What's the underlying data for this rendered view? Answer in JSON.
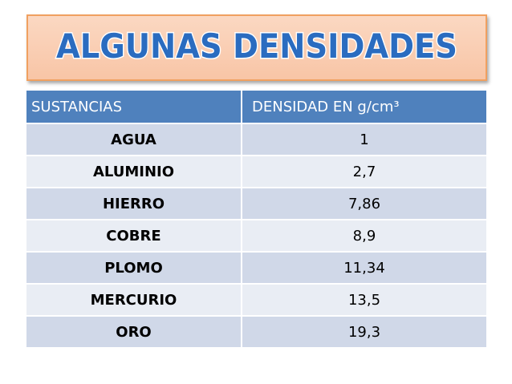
{
  "title": "ALGUNAS DENSIDADES",
  "table": {
    "header": [
      "SUSTANCIAS",
      "DENSIDAD EN g/cm³"
    ],
    "rows": [
      [
        "AGUA",
        "1"
      ],
      [
        "ALUMINIO",
        "2,7"
      ],
      [
        "HIERRO",
        "7,86"
      ],
      [
        "COBRE",
        "8,9"
      ],
      [
        "PLOMO",
        "11,34"
      ],
      [
        "MERCURIO",
        "13,5"
      ],
      [
        "ORO",
        "19,3"
      ]
    ]
  }
}
